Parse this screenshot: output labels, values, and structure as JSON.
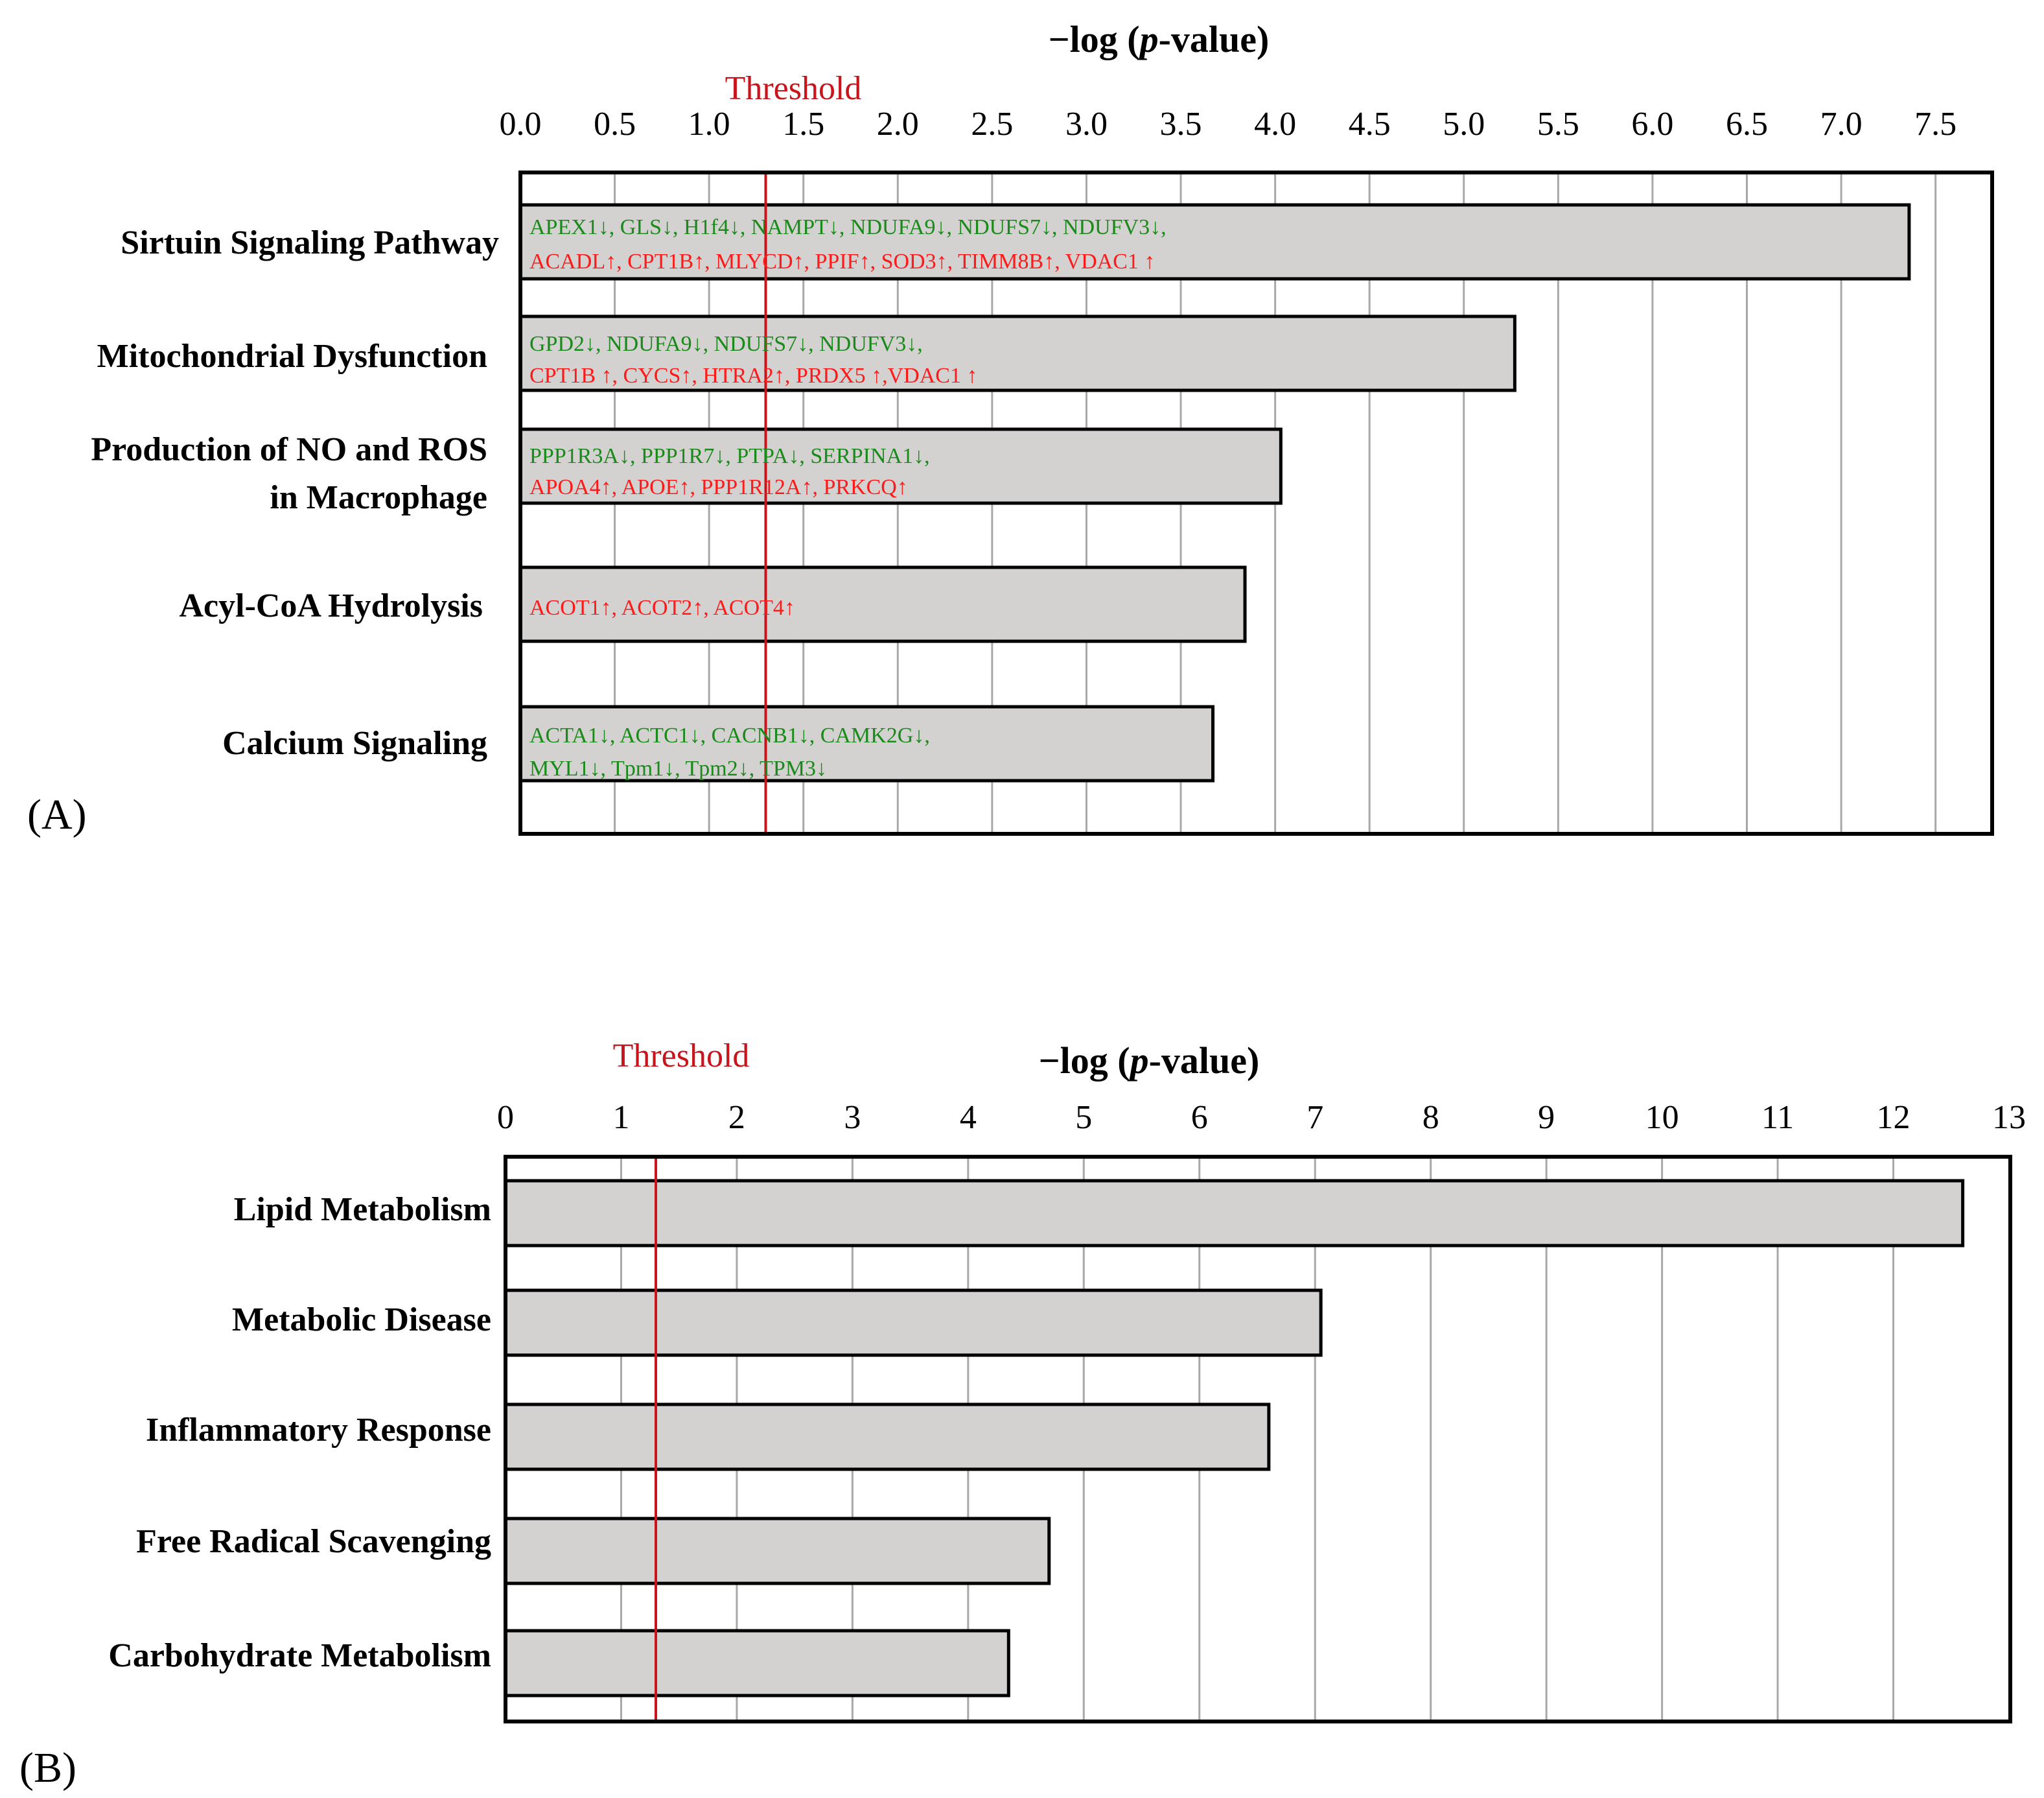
{
  "colors": {
    "bar_fill": "#d4d1d1",
    "threshold": "#c8141b",
    "gene_down": "#1a8a1a",
    "gene_up": "#ff1a1a",
    "grid": "#a8a8a8",
    "axis": "#000000"
  },
  "chart_data": [
    {
      "panel": "(A)",
      "type": "bar",
      "orientation": "horizontal",
      "title": "−log (p-value)",
      "title_parts": [
        "−log (",
        "p",
        "-value)"
      ],
      "xlabel": "−log (p-value)",
      "xlim": [
        0,
        7.8
      ],
      "xticks": [
        0.0,
        0.5,
        1.0,
        1.5,
        2.0,
        2.5,
        3.0,
        3.5,
        4.0,
        4.5,
        5.0,
        5.5,
        6.0,
        6.5,
        7.0,
        7.5
      ],
      "xtick_labels": [
        "0.0",
        "0.5",
        "1.0",
        "1.5",
        "2.0",
        "2.5",
        "3.0",
        "3.5",
        "4.0",
        "4.5",
        "5.0",
        "5.5",
        "6.0",
        "6.5",
        "7.0",
        "7.5"
      ],
      "grid": true,
      "threshold": {
        "value": 1.3,
        "label": "Threshold"
      },
      "categories": [
        {
          "label_lines": [
            "Sirtuin Signaling Pathway"
          ],
          "value": 7.36,
          "genes_down": "APEX1↓, GLS↓, H1f4↓, NAMPT↓, NDUFA9↓, NDUFS7↓, NDUFV3↓,",
          "genes_up": "ACADL↑, CPT1B↑, MLYCD↑, PPIF↑, SOD3↑, TIMM8B↑, VDAC1 ↑"
        },
        {
          "label_lines": [
            "Mitochondrial Dysfunction"
          ],
          "value": 5.27,
          "genes_down": "GPD2↓, NDUFA9↓, NDUFS7↓, NDUFV3↓,",
          "genes_up": "CPT1B ↑, CYCS↑, HTRA2↑, PRDX5 ↑,VDAC1 ↑"
        },
        {
          "label_lines": [
            "Production of NO and ROS",
            "in Macrophage"
          ],
          "value": 4.03,
          "genes_down": "PPP1R3A↓, PPP1R7↓, PTPA↓, SERPINA1↓,",
          "genes_up": "APOA4↑, APOE↑, PPP1R12A↑, PRKCQ↑"
        },
        {
          "label_lines": [
            "Acyl-CoA Hydrolysis"
          ],
          "value": 3.84,
          "genes_down": "",
          "genes_up": "ACOT1↑, ACOT2↑, ACOT4↑"
        },
        {
          "label_lines": [
            "Calcium Signaling"
          ],
          "value": 3.67,
          "genes_down": "ACTA1↓, ACTC1↓, CACNB1↓, CAMK2G↓,",
          "genes_down_2": "MYL1↓, Tpm1↓, Tpm2↓, TPM3↓",
          "genes_up": ""
        }
      ]
    },
    {
      "panel": "(B)",
      "type": "bar",
      "orientation": "horizontal",
      "title": "−log (p-value)",
      "title_parts": [
        "−log (",
        "p",
        "-value)"
      ],
      "xlabel": "−log (p-value)",
      "xlim": [
        0,
        13
      ],
      "xticks": [
        0,
        1,
        2,
        3,
        4,
        5,
        6,
        7,
        8,
        9,
        10,
        11,
        12,
        13
      ],
      "xtick_labels": [
        "0",
        "1",
        "2",
        "3",
        "4",
        "5",
        "6",
        "7",
        "8",
        "9",
        "10",
        "11",
        "12",
        "13"
      ],
      "grid": true,
      "threshold": {
        "value": 1.3,
        "label": "Threshold"
      },
      "categories": [
        {
          "label_lines": [
            "Lipid Metabolism"
          ],
          "value": 12.6
        },
        {
          "label_lines": [
            "Metabolic Disease"
          ],
          "value": 7.05
        },
        {
          "label_lines": [
            "Inflammatory Response"
          ],
          "value": 6.6
        },
        {
          "label_lines": [
            "Free Radical Scavenging"
          ],
          "value": 4.7
        },
        {
          "label_lines": [
            "Carbohydrate Metabolism"
          ],
          "value": 4.35
        }
      ]
    }
  ]
}
